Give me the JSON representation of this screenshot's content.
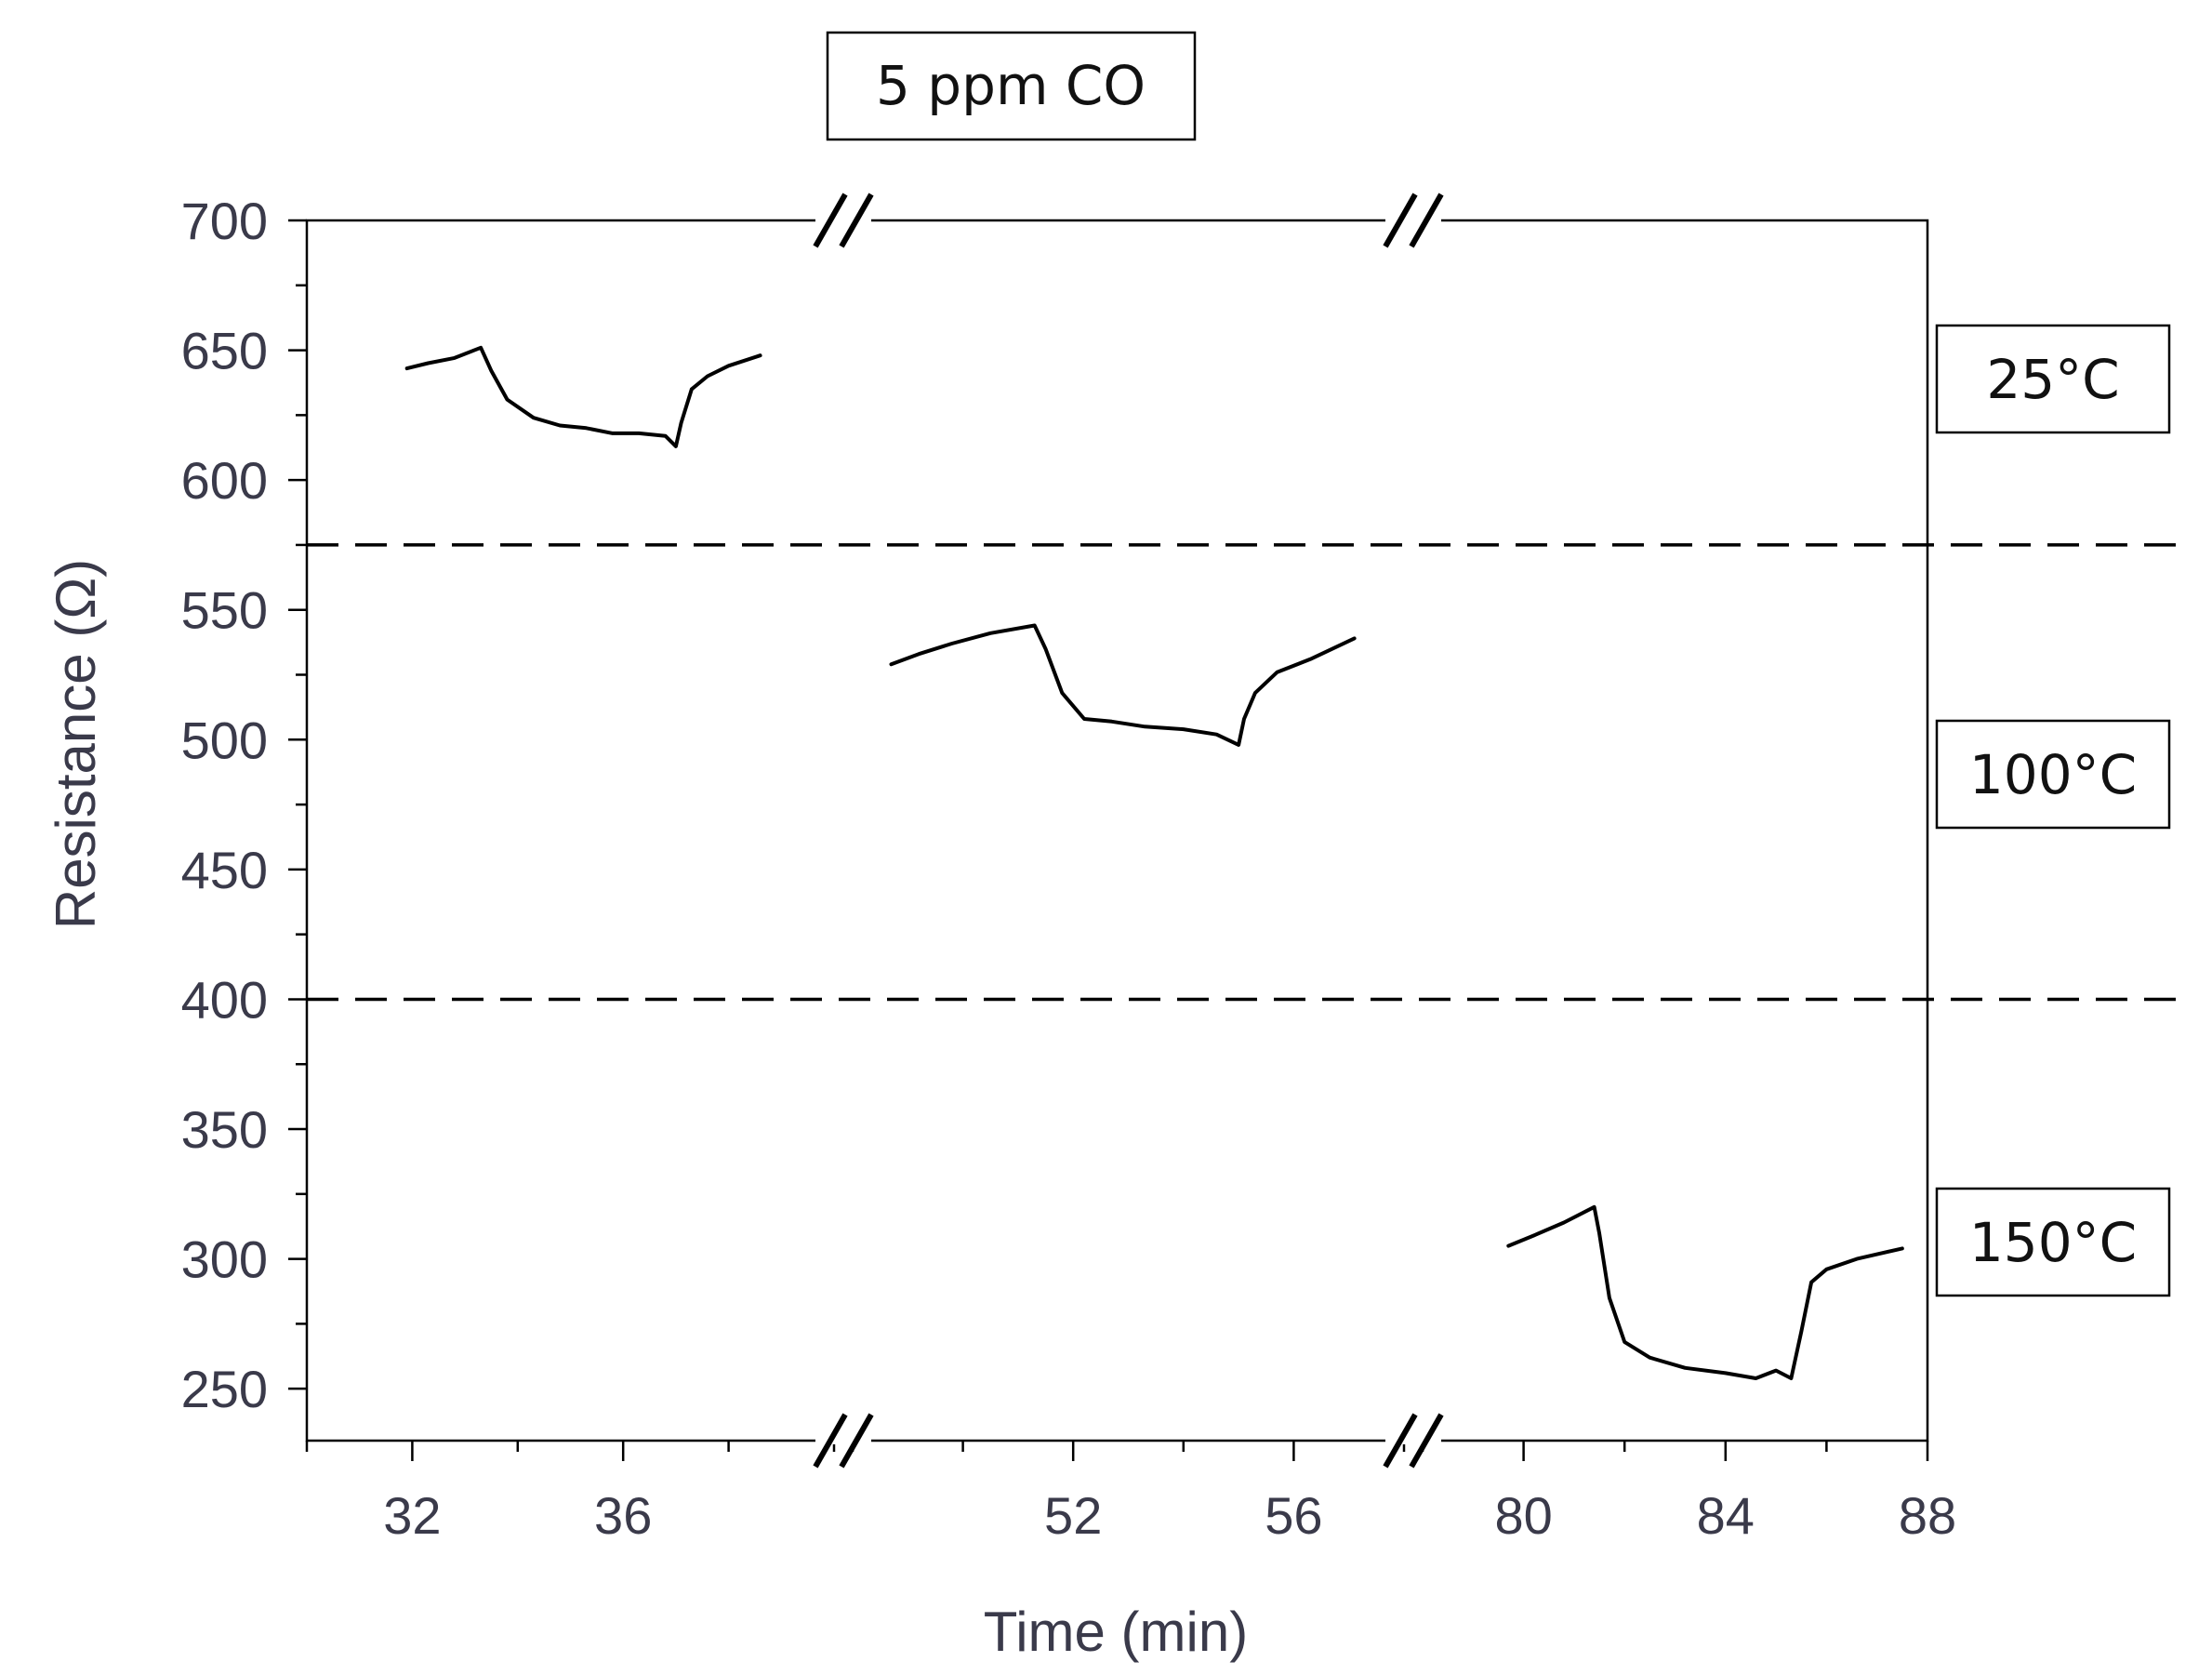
{
  "chart_data": {
    "type": "line",
    "title": "5 ppm CO",
    "xlabel": "Time (min)",
    "ylabel": "Resistance (Ω)",
    "ylim": [
      230,
      700
    ],
    "y_ticks": [
      250,
      300,
      350,
      400,
      450,
      500,
      550,
      600,
      650,
      700
    ],
    "x_axis_breaks": true,
    "x_segments": [
      {
        "xlim": [
          30,
          40
        ],
        "ticks": [
          32,
          36
        ]
      },
      {
        "xlim": [
          48,
          58
        ],
        "ticks": [
          52,
          56
        ]
      },
      {
        "xlim": [
          78,
          88
        ],
        "ticks": [
          80,
          84,
          88
        ]
      }
    ],
    "x_tick_labels": [
      "32",
      "36",
      "52",
      "56",
      "80",
      "84",
      "88"
    ],
    "reference_lines_y": [
      575,
      400
    ],
    "temperature_labels": [
      "25°C",
      "100°C",
      "150°C"
    ],
    "series": [
      {
        "x": [
          31.9,
          32.3,
          32.8,
          33.3,
          33.5,
          33.8,
          34.3,
          34.8,
          35.3,
          35.8,
          36.3,
          36.8,
          37.0,
          37.1,
          37.3,
          37.6,
          38.0,
          38.6
        ],
        "y": [
          643,
          645,
          647,
          651,
          642,
          631,
          624,
          621,
          620,
          618,
          618,
          617,
          613,
          622,
          635,
          640,
          644,
          648
        ]
      },
      {
        "x": [
          48.7,
          49.2,
          49.8,
          50.5,
          51.3,
          51.5,
          51.8,
          52.2,
          52.7,
          53.3,
          54.0,
          54.6,
          55.0,
          55.1,
          55.3,
          55.7,
          56.3,
          57.1
        ],
        "y": [
          529,
          533,
          537,
          541,
          544,
          535,
          518,
          508,
          507,
          505,
          504,
          502,
          498,
          508,
          518,
          526,
          531,
          539
        ]
      },
      {
        "x": [
          79.7,
          80.2,
          80.8,
          81.4,
          81.5,
          81.7,
          82.0,
          82.5,
          83.2,
          84.0,
          84.6,
          85.0,
          85.3,
          85.5,
          85.7,
          86.0,
          86.6,
          87.5
        ],
        "y": [
          305,
          309,
          314,
          320,
          310,
          285,
          268,
          262,
          258,
          256,
          254,
          257,
          254,
          272,
          291,
          296,
          300,
          304
        ]
      }
    ]
  }
}
